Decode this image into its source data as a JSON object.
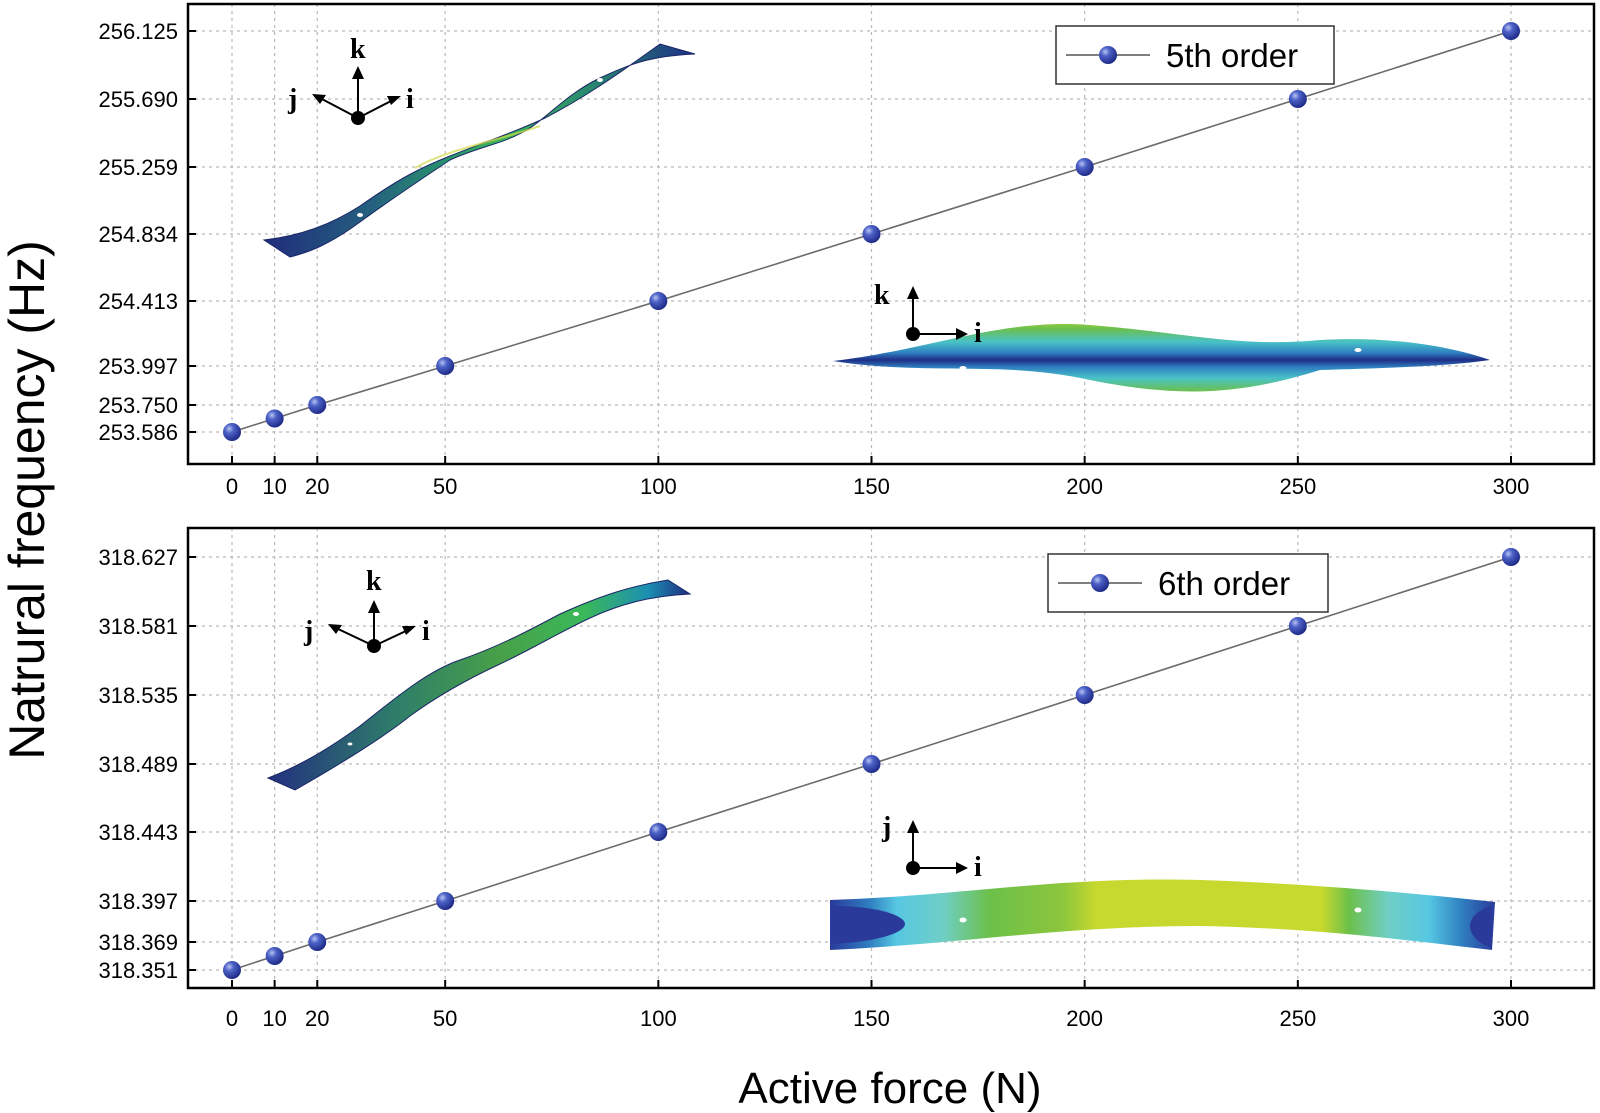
{
  "chart_data": [
    {
      "type": "line",
      "title": "",
      "legend": {
        "label": "5th order",
        "position": "top-right"
      },
      "xlabel": "Active force (N)",
      "ylabel": "Natrural frequency (Hz)",
      "x_ticks": [
        "0",
        "10",
        "20",
        "50",
        "100",
        "150",
        "200",
        "250",
        "300"
      ],
      "y_ticks": [
        "253.586",
        "253.750",
        "253.997",
        "254.413",
        "254.834",
        "255.259",
        "255.690",
        "256.125"
      ],
      "xlim": [
        -10,
        320
      ],
      "grid": true,
      "series": [
        {
          "name": "5th order",
          "x": [
            0,
            10,
            20,
            50,
            100,
            150,
            200,
            250,
            300
          ],
          "y": [
            253.586,
            253.668,
            253.75,
            253.997,
            254.413,
            254.834,
            255.259,
            255.69,
            256.125
          ]
        }
      ],
      "insets": [
        {
          "name": "mode-shape-3d",
          "axes": [
            "j",
            "k",
            "i"
          ]
        },
        {
          "name": "mode-shape-side",
          "axes": [
            "k",
            "i"
          ]
        }
      ]
    },
    {
      "type": "line",
      "title": "",
      "legend": {
        "label": "6th order",
        "position": "top-right"
      },
      "xlabel": "Active force (N)",
      "ylabel": "Natrural frequency (Hz)",
      "x_ticks": [
        "0",
        "10",
        "20",
        "50",
        "100",
        "150",
        "200",
        "250",
        "300"
      ],
      "y_ticks": [
        "318.351",
        "318.369",
        "318.397",
        "318.443",
        "318.489",
        "318.535",
        "318.581",
        "318.627"
      ],
      "xlim": [
        -10,
        320
      ],
      "grid": true,
      "series": [
        {
          "name": "6th order",
          "x": [
            0,
            10,
            20,
            50,
            100,
            150,
            200,
            250,
            300
          ],
          "y": [
            318.351,
            318.36,
            318.369,
            318.397,
            318.443,
            318.489,
            318.535,
            318.581,
            318.627
          ]
        }
      ],
      "insets": [
        {
          "name": "mode-shape-3d",
          "axes": [
            "j",
            "k",
            "i"
          ]
        },
        {
          "name": "mode-shape-top",
          "axes": [
            "j",
            "i"
          ]
        }
      ]
    }
  ]
}
